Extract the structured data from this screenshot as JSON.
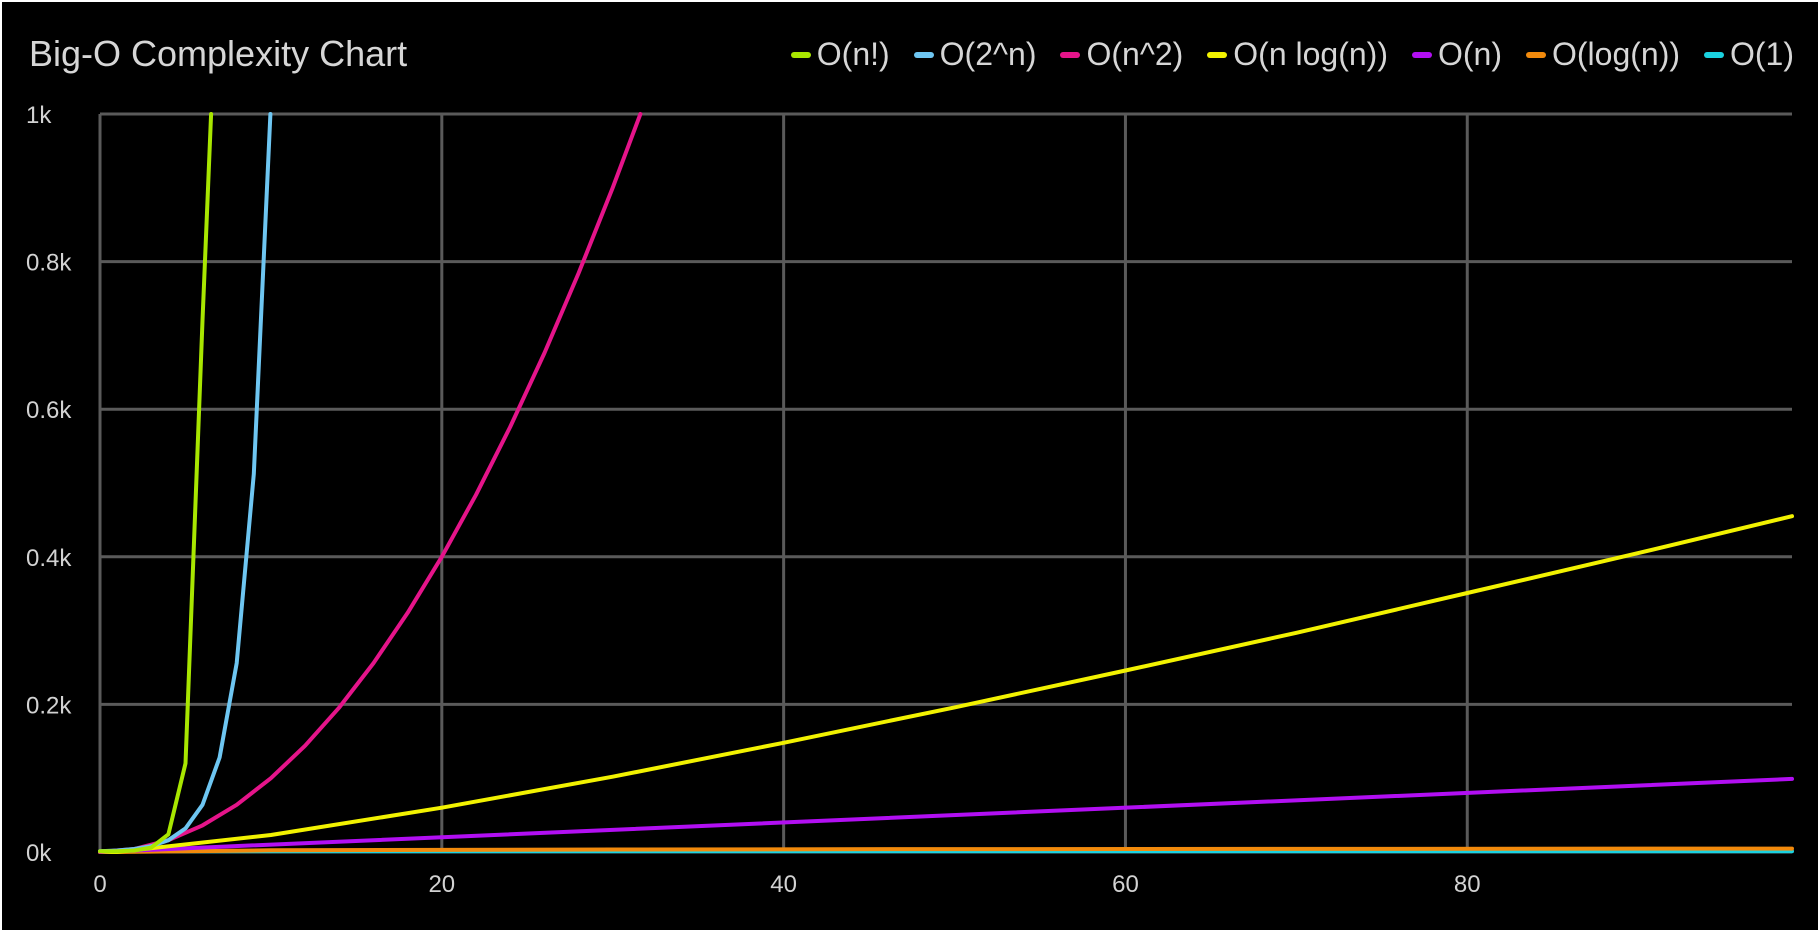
{
  "chart_data": {
    "type": "line",
    "title": "Big-O Complexity Chart",
    "xlabel": "",
    "ylabel": "",
    "xlim": [
      0,
      99
    ],
    "ylim": [
      0,
      1000
    ],
    "x_ticks": [
      0,
      20,
      40,
      60,
      80
    ],
    "x_tick_labels": [
      "0",
      "20",
      "40",
      "60",
      "80"
    ],
    "y_ticks": [
      0,
      200,
      400,
      600,
      800,
      1000
    ],
    "y_tick_labels": [
      "0k",
      "0.2k",
      "0.4k",
      "0.6k",
      "0.8k",
      "1k"
    ],
    "grid": true,
    "legend_position": "top-right",
    "background": "#000000",
    "grid_color": "#5a5a5a",
    "series": [
      {
        "name": "O(n!)",
        "color": "#a8e600",
        "x": [
          0,
          1,
          2,
          3,
          4,
          5,
          6,
          6.5
        ],
        "y": [
          1,
          1,
          2,
          6,
          24,
          120,
          720,
          1000
        ]
      },
      {
        "name": "O(2^n)",
        "color": "#6ec6f2",
        "x": [
          0,
          1,
          2,
          3,
          4,
          5,
          6,
          7,
          8,
          9,
          9.97
        ],
        "y": [
          1,
          2,
          4,
          8,
          16,
          32,
          64,
          128,
          256,
          512,
          1000
        ]
      },
      {
        "name": "O(n^2)",
        "color": "#e5148a",
        "x": [
          0,
          2,
          4,
          6,
          8,
          10,
          12,
          14,
          16,
          18,
          20,
          22,
          24,
          26,
          28,
          30,
          31.62
        ],
        "y": [
          0,
          4,
          16,
          36,
          64,
          100,
          144,
          196,
          256,
          324,
          400,
          484,
          576,
          676,
          784,
          900,
          1000
        ]
      },
      {
        "name": "O(n log(n))",
        "color": "#f2f200",
        "x": [
          0,
          1,
          10,
          20,
          30,
          40,
          50,
          60,
          70,
          80,
          90,
          99
        ],
        "y": [
          0,
          0,
          23,
          60,
          102,
          148,
          196,
          246,
          297,
          351,
          405,
          455
        ]
      },
      {
        "name": "O(n)",
        "color": "#b20ff2",
        "x": [
          0,
          99
        ],
        "y": [
          0,
          99
        ]
      },
      {
        "name": "O(log(n))",
        "color": "#f28a0c",
        "x": [
          0,
          1,
          10,
          30,
          50,
          70,
          99
        ],
        "y": [
          0,
          0,
          2.3,
          3.4,
          3.9,
          4.2,
          4.6
        ]
      },
      {
        "name": "O(1)",
        "color": "#1ad2e0",
        "x": [
          0,
          99
        ],
        "y": [
          1,
          1
        ]
      }
    ]
  }
}
